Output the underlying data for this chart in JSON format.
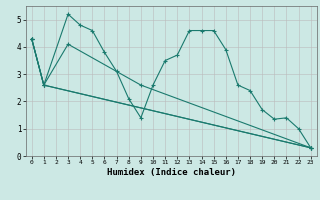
{
  "background_color": "#cce8e4",
  "grid_color": "#bbbbbb",
  "line_color": "#1a7a6e",
  "xlabel": "Humidex (Indice chaleur)",
  "ylim": [
    0,
    5.5
  ],
  "xlim": [
    -0.5,
    23.5
  ],
  "yticks": [
    0,
    1,
    2,
    3,
    4,
    5
  ],
  "xticks": [
    0,
    1,
    2,
    3,
    4,
    5,
    6,
    7,
    8,
    9,
    10,
    11,
    12,
    13,
    14,
    15,
    16,
    17,
    18,
    19,
    20,
    21,
    22,
    23
  ],
  "series1_x": [
    0,
    1,
    3,
    4,
    5,
    6,
    7,
    8,
    9,
    10,
    11,
    12,
    13,
    14,
    15,
    16,
    17,
    18,
    19,
    20,
    21,
    22,
    23
  ],
  "series1_y": [
    4.3,
    2.6,
    5.2,
    4.8,
    4.6,
    3.8,
    3.1,
    2.1,
    1.4,
    2.6,
    3.5,
    3.7,
    4.6,
    4.6,
    4.6,
    3.9,
    2.6,
    2.4,
    1.7,
    1.35,
    1.4,
    1.0,
    0.3
  ],
  "series2_x": [
    0,
    1,
    3,
    9,
    23
  ],
  "series2_y": [
    4.3,
    2.6,
    4.1,
    2.6,
    0.3
  ],
  "series3_x": [
    0,
    1,
    23
  ],
  "series3_y": [
    4.3,
    2.6,
    0.3
  ],
  "series4_x": [
    0,
    1,
    23
  ],
  "series4_y": [
    4.3,
    2.6,
    0.3
  ]
}
